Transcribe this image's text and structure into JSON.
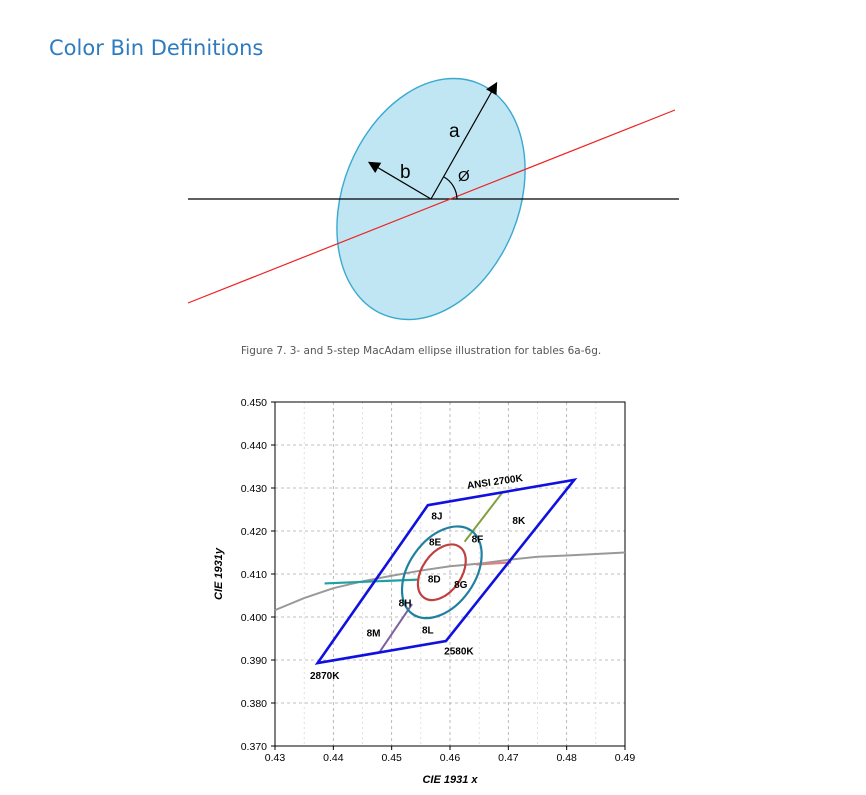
{
  "heading": "Color Bin Definitions",
  "figure7": {
    "label_a": "a",
    "label_b": "b",
    "label_phi": "Ø",
    "caption": "Figure 7. 3- and 5-step MacAdam ellipse illustration for tables 6a-6g."
  },
  "chart_data": {
    "type": "line",
    "xlabel": "CIE 1931 x",
    "ylabel": "CIE 1931y",
    "xlim": [
      0.43,
      0.49
    ],
    "ylim": [
      0.37,
      0.45
    ],
    "x_ticks": [
      "0.43",
      "0.44",
      "0.45",
      "0.46",
      "0.47",
      "0.48",
      "0.49"
    ],
    "y_ticks": [
      "0.450",
      "0.440",
      "0.430",
      "0.420",
      "0.410",
      "0.400",
      "0.390",
      "0.380",
      "0.370"
    ],
    "grid": true,
    "bin_labels": [
      "8J",
      "8E",
      "8F",
      "8K",
      "8D",
      "8G",
      "8H",
      "8M",
      "8L"
    ],
    "annotations": [
      "ANSI 2700K",
      "2580K",
      "2870K"
    ],
    "colors": {
      "quadrangle": "#1010e0",
      "ellipse5": "#2080a0",
      "ellipse3": "#c04040",
      "planckian": "#999999",
      "divider_upper": "#80a040",
      "divider_lower": "#8060a0",
      "divider_left": "#20a0a0",
      "divider_right": "#e08080"
    }
  }
}
